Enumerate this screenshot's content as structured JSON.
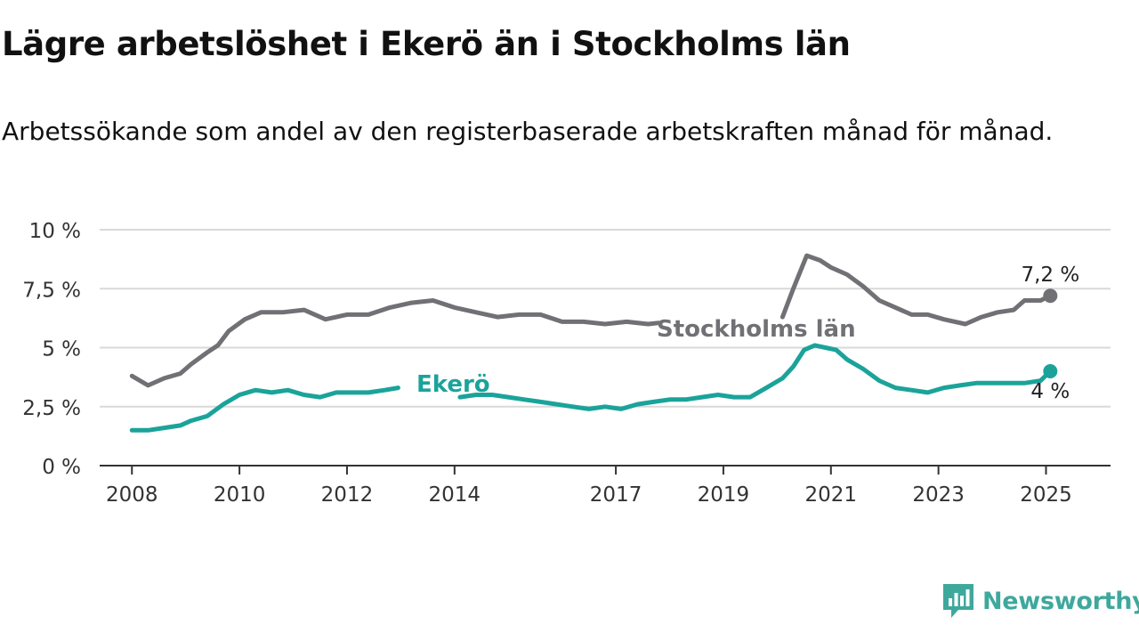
{
  "header": {
    "title": "Lägre arbetslöshet i Ekerö än i Stockholms län",
    "subtitle": "Arbetssökande som andel av den registerbaserade arbetskraften månad för månad."
  },
  "brand": {
    "name": "Newsworthy",
    "icon": "chart-speech-bubble-icon",
    "color": "#3ea89c"
  },
  "chart_data": {
    "type": "line",
    "ylim": [
      0,
      10
    ],
    "y_ticks": [
      0,
      2.5,
      5,
      7.5,
      10
    ],
    "y_tick_labels": [
      "0 %",
      "2,5 %",
      "5 %",
      "7,5 %",
      "10 %"
    ],
    "x_ticks": [
      2008,
      2010,
      2012,
      2014,
      2017,
      2019,
      2021,
      2023,
      2025
    ],
    "x_tick_labels": [
      "2008",
      "2010",
      "2012",
      "2014",
      "2017",
      "2019",
      "2021",
      "2023",
      "2025"
    ],
    "grid": true,
    "series": [
      {
        "name": "Stockholms län",
        "color": "#707075",
        "end_label": "7,2 %",
        "points": [
          [
            2008.0,
            3.8
          ],
          [
            2008.3,
            3.4
          ],
          [
            2008.6,
            3.7
          ],
          [
            2008.9,
            3.9
          ],
          [
            2009.1,
            4.3
          ],
          [
            2009.4,
            4.8
          ],
          [
            2009.6,
            5.1
          ],
          [
            2009.8,
            5.7
          ],
          [
            2010.1,
            6.2
          ],
          [
            2010.4,
            6.5
          ],
          [
            2010.8,
            6.5
          ],
          [
            2011.2,
            6.6
          ],
          [
            2011.6,
            6.2
          ],
          [
            2012.0,
            6.4
          ],
          [
            2012.4,
            6.4
          ],
          [
            2012.8,
            6.7
          ],
          [
            2013.2,
            6.9
          ],
          [
            2013.6,
            7.0
          ],
          [
            2014.0,
            6.7
          ],
          [
            2014.4,
            6.5
          ],
          [
            2014.8,
            6.3
          ],
          [
            2015.2,
            6.4
          ],
          [
            2015.6,
            6.4
          ],
          [
            2016.0,
            6.1
          ],
          [
            2016.4,
            6.1
          ],
          [
            2016.8,
            6.0
          ],
          [
            2017.2,
            6.1
          ],
          [
            2017.6,
            6.0
          ],
          [
            2017.8,
            6.05
          ],
          [
            2020.1,
            6.3
          ],
          [
            2020.3,
            7.5
          ],
          [
            2020.55,
            8.9
          ],
          [
            2020.8,
            8.7
          ],
          [
            2021.0,
            8.4
          ],
          [
            2021.3,
            8.1
          ],
          [
            2021.6,
            7.6
          ],
          [
            2021.9,
            7.0
          ],
          [
            2022.2,
            6.7
          ],
          [
            2022.5,
            6.4
          ],
          [
            2022.8,
            6.4
          ],
          [
            2023.1,
            6.2
          ],
          [
            2023.5,
            6.0
          ],
          [
            2023.8,
            6.3
          ],
          [
            2024.1,
            6.5
          ],
          [
            2024.4,
            6.6
          ],
          [
            2024.6,
            7.0
          ],
          [
            2024.9,
            7.0
          ],
          [
            2025.08,
            7.2
          ]
        ]
      },
      {
        "name": "Ekerö",
        "color": "#1ba39a",
        "end_label": "4 %",
        "points": [
          [
            2008.0,
            1.5
          ],
          [
            2008.3,
            1.5
          ],
          [
            2008.6,
            1.6
          ],
          [
            2008.9,
            1.7
          ],
          [
            2009.1,
            1.9
          ],
          [
            2009.4,
            2.1
          ],
          [
            2009.7,
            2.6
          ],
          [
            2010.0,
            3.0
          ],
          [
            2010.3,
            3.2
          ],
          [
            2010.6,
            3.1
          ],
          [
            2010.9,
            3.2
          ],
          [
            2011.2,
            3.0
          ],
          [
            2011.5,
            2.9
          ],
          [
            2011.8,
            3.1
          ],
          [
            2012.1,
            3.1
          ],
          [
            2012.4,
            3.1
          ],
          [
            2012.7,
            3.2
          ],
          [
            2012.95,
            3.3
          ],
          [
            2014.1,
            2.9
          ],
          [
            2014.4,
            3.0
          ],
          [
            2014.7,
            3.0
          ],
          [
            2015.0,
            2.9
          ],
          [
            2015.3,
            2.8
          ],
          [
            2015.6,
            2.7
          ],
          [
            2015.9,
            2.6
          ],
          [
            2016.2,
            2.5
          ],
          [
            2016.5,
            2.4
          ],
          [
            2016.8,
            2.5
          ],
          [
            2017.1,
            2.4
          ],
          [
            2017.4,
            2.6
          ],
          [
            2017.7,
            2.7
          ],
          [
            2018.0,
            2.8
          ],
          [
            2018.3,
            2.8
          ],
          [
            2018.6,
            2.9
          ],
          [
            2018.9,
            3.0
          ],
          [
            2019.2,
            2.9
          ],
          [
            2019.5,
            2.9
          ],
          [
            2019.8,
            3.3
          ],
          [
            2020.1,
            3.7
          ],
          [
            2020.3,
            4.2
          ],
          [
            2020.5,
            4.9
          ],
          [
            2020.7,
            5.1
          ],
          [
            2020.9,
            5.0
          ],
          [
            2021.1,
            4.9
          ],
          [
            2021.3,
            4.5
          ],
          [
            2021.6,
            4.1
          ],
          [
            2021.9,
            3.6
          ],
          [
            2022.2,
            3.3
          ],
          [
            2022.5,
            3.2
          ],
          [
            2022.8,
            3.1
          ],
          [
            2023.1,
            3.3
          ],
          [
            2023.4,
            3.4
          ],
          [
            2023.7,
            3.5
          ],
          [
            2024.0,
            3.5
          ],
          [
            2024.3,
            3.5
          ],
          [
            2024.6,
            3.5
          ],
          [
            2024.9,
            3.6
          ],
          [
            2025.08,
            4.0
          ]
        ]
      }
    ]
  }
}
